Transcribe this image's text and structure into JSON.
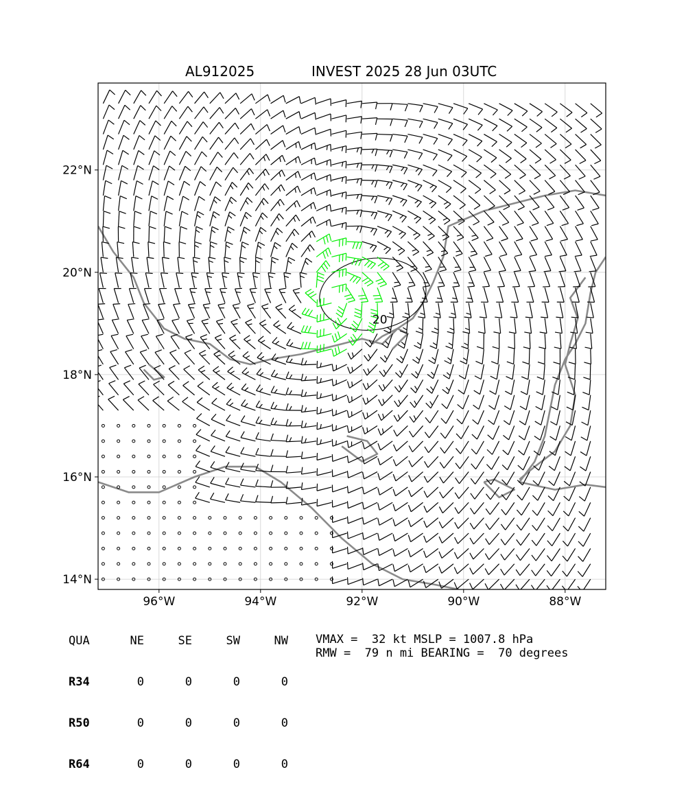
{
  "header": {
    "storm_id": "AL912025",
    "title": "INVEST 2025 28 Jun 03UTC"
  },
  "map": {
    "lon_range": [
      -97.2,
      -87.2
    ],
    "lat_range": [
      13.8,
      23.7
    ],
    "lon_ticks": [
      {
        "value": -96,
        "label": "96°W"
      },
      {
        "value": -94,
        "label": "94°W"
      },
      {
        "value": -92,
        "label": "92°W"
      },
      {
        "value": -90,
        "label": "90°W"
      },
      {
        "value": -88,
        "label": "88°W"
      }
    ],
    "lat_ticks": [
      {
        "value": 14,
        "label": "14°N"
      },
      {
        "value": 16,
        "label": "16°N"
      },
      {
        "value": 18,
        "label": "18°N"
      },
      {
        "value": 20,
        "label": "20°N"
      },
      {
        "value": 22,
        "label": "22°N"
      }
    ],
    "grid": true,
    "coast_color": "#8a8a8a",
    "barb_color": "#000000",
    "strong_barb_color": "#00ee00",
    "center": {
      "lon": -92.6,
      "lat": 19.6
    },
    "contour_label": "20",
    "contour_label_pos": {
      "lon": -91.65,
      "lat": 19.0
    }
  },
  "radii_table": {
    "headers": [
      "QUA",
      "NE",
      "SE",
      "SW",
      "NW"
    ],
    "rows": [
      {
        "label": "R34",
        "values": [
          "0",
          "0",
          "0",
          "0"
        ]
      },
      {
        "label": "R50",
        "values": [
          "0",
          "0",
          "0",
          "0"
        ]
      },
      {
        "label": "R64",
        "values": [
          "0",
          "0",
          "0",
          "0"
        ]
      }
    ]
  },
  "stats": {
    "line1": "VMAX =  32 kt MSLP = 1007.8 hPa",
    "line2": "RMW =  79 n mi BEARING =  70 degrees"
  }
}
